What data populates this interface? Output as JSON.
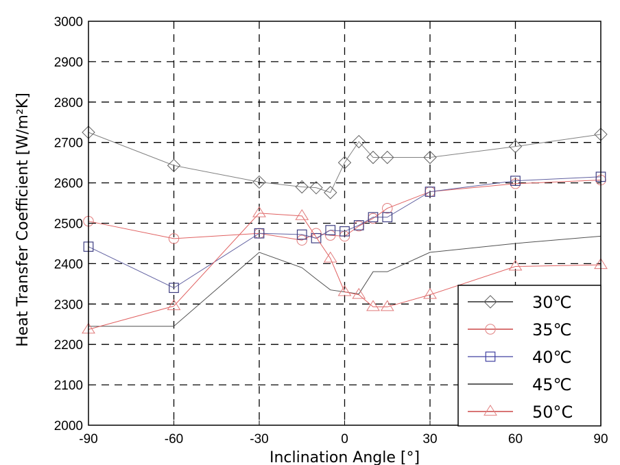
{
  "chart_data": {
    "type": "line",
    "title": "",
    "xlabel": "Inclination Angle [°]",
    "ylabel": "Heat Transfer Coefficient [W/m²K]",
    "xlim": [
      -90,
      90
    ],
    "ylim": [
      2000,
      3000
    ],
    "xticks": [
      -90,
      -60,
      -30,
      0,
      30,
      60,
      90
    ],
    "xtick_labels": [
      "-90",
      "-60",
      "-30",
      "0",
      "30",
      "60",
      "90"
    ],
    "yticks": [
      2000,
      2100,
      2200,
      2300,
      2400,
      2500,
      2600,
      2700,
      2800,
      2900,
      3000
    ],
    "ytick_labels": [
      "2000",
      "2100",
      "2200",
      "2300",
      "2400",
      "2500",
      "2600",
      "2700",
      "2800",
      "2900",
      "3000"
    ],
    "grid": true,
    "grid_style": "dashed",
    "legend_position": "lower right",
    "series": [
      {
        "name": "30℃",
        "color": "#808080",
        "marker": "diamond",
        "x": [
          -90,
          -60,
          -30,
          -15,
          -10,
          -5,
          0,
          5,
          10,
          15,
          30,
          60,
          90
        ],
        "values": [
          2725,
          2643,
          2602,
          2590,
          2588,
          2576,
          2650,
          2702,
          2663,
          2663,
          2663,
          2690,
          2720
        ]
      },
      {
        "name": "35℃",
        "color": "#e06060",
        "marker": "circle",
        "x": [
          -90,
          -60,
          -30,
          -15,
          -10,
          -5,
          0,
          5,
          10,
          15,
          30,
          60,
          90
        ],
        "values": [
          2505,
          2462,
          2475,
          2458,
          2475,
          2470,
          2468,
          2493,
          2512,
          2537,
          2578,
          2598,
          2607
        ]
      },
      {
        "name": "40℃",
        "color": "#6060a0",
        "marker": "square",
        "x": [
          -90,
          -60,
          -30,
          -15,
          -10,
          -5,
          0,
          5,
          10,
          15,
          30,
          60,
          90
        ],
        "values": [
          2442,
          2340,
          2475,
          2472,
          2463,
          2483,
          2480,
          2495,
          2515,
          2515,
          2578,
          2605,
          2615
        ]
      },
      {
        "name": "45℃",
        "color": "#505050",
        "marker": "none",
        "x": [
          -90,
          -60,
          -30,
          -15,
          -10,
          -5,
          0,
          5,
          10,
          15,
          30,
          60,
          90
        ],
        "values": [
          2245,
          2245,
          2428,
          2390,
          2362,
          2335,
          2330,
          2325,
          2380,
          2380,
          2428,
          2450,
          2468
        ]
      },
      {
        "name": "50°C",
        "color": "#e06060",
        "marker": "triangle",
        "x": [
          -90,
          -60,
          -30,
          -15,
          -5,
          0,
          5,
          10,
          15,
          30,
          60,
          90
        ],
        "values": [
          2237,
          2295,
          2525,
          2518,
          2413,
          2330,
          2323,
          2293,
          2293,
          2323,
          2393,
          2397
        ]
      }
    ]
  },
  "legend": {
    "items": [
      {
        "label": "30℃",
        "line_color": "#000000",
        "marker": "diamond",
        "marker_color": "#606060"
      },
      {
        "label": "35℃",
        "line_color": "#c02020",
        "marker": "circle",
        "marker_color": "#e08080"
      },
      {
        "label": "40℃",
        "line_color": "#4040a0",
        "marker": "square",
        "marker_color": "#4040a0"
      },
      {
        "label": "45℃",
        "line_color": "#000000",
        "marker": "none",
        "marker_color": ""
      },
      {
        "label": "50°C",
        "line_color": "#c02020",
        "marker": "triangle",
        "marker_color": "#e08080"
      }
    ]
  },
  "axes": {
    "xlabel": "Inclination Angle [°]",
    "ylabel": "Heat Transfer Coefficient [W/m²K]"
  }
}
